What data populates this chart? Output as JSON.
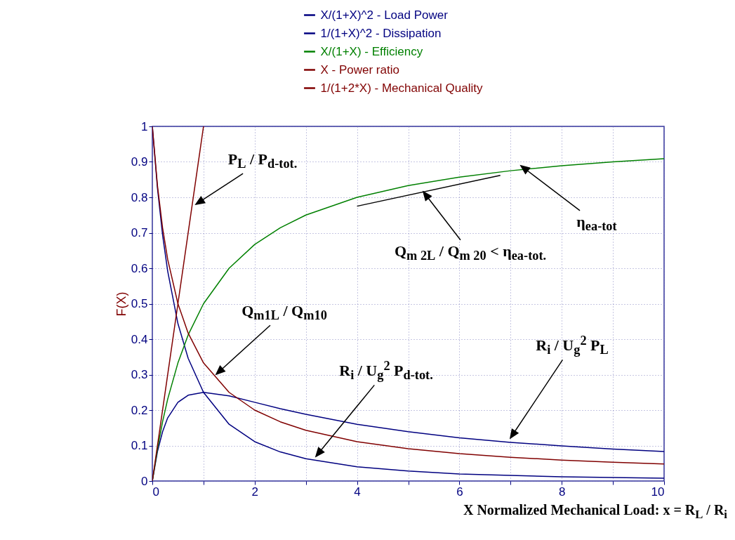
{
  "chart_data": {
    "type": "line",
    "ylabel": "F(X)",
    "xlabel": "X Normalized Mechanical Load:  x = R$_{L}$ / R$_{i}$",
    "x": [
      0,
      0.1,
      0.2,
      0.3,
      0.5,
      0.7,
      1,
      1.5,
      2,
      2.5,
      3,
      4,
      5,
      6,
      7,
      8,
      9,
      10
    ],
    "series": [
      {
        "name": "X/(1+X)^2 - Load Power",
        "color": "#000080",
        "values": [
          0,
          0.083,
          0.139,
          0.178,
          0.222,
          0.242,
          0.25,
          0.24,
          0.222,
          0.204,
          0.188,
          0.16,
          0.139,
          0.122,
          0.109,
          0.099,
          0.09,
          0.083
        ]
      },
      {
        "name": "1/(1+X)^2 - Dissipation",
        "color": "#000080",
        "values": [
          1,
          0.826,
          0.694,
          0.592,
          0.444,
          0.346,
          0.25,
          0.16,
          0.111,
          0.082,
          0.063,
          0.04,
          0.028,
          0.02,
          0.016,
          0.012,
          0.01,
          0.008
        ]
      },
      {
        "name": "X/(1+X) - Efficiency",
        "color": "#008000",
        "values": [
          0,
          0.091,
          0.167,
          0.231,
          0.333,
          0.412,
          0.5,
          0.6,
          0.667,
          0.714,
          0.75,
          0.8,
          0.833,
          0.857,
          0.875,
          0.889,
          0.9,
          0.909
        ]
      },
      {
        "name": "X - Power ratio",
        "color": "#800000",
        "x": [
          0,
          0.5,
          1
        ],
        "values": [
          0,
          0.5,
          1
        ]
      },
      {
        "name": "1/(1+2*X) - Mechanical Quality",
        "color": "#800000",
        "values": [
          1,
          0.833,
          0.714,
          0.625,
          0.5,
          0.417,
          0.333,
          0.25,
          0.2,
          0.167,
          0.143,
          0.111,
          0.091,
          0.077,
          0.067,
          0.059,
          0.053,
          0.048
        ]
      },
      {
        "color": "#000000",
        "x": [
          4,
          6.8
        ],
        "values": [
          0.775,
          0.862
        ]
      }
    ],
    "xlim": [
      0,
      10
    ],
    "xticks": [
      0,
      {
        "value": 1,
        "label": null
      },
      2,
      {
        "value": 3,
        "label": null
      },
      4,
      {
        "value": 5,
        "label": null
      },
      6,
      {
        "value": 7,
        "label": null
      },
      8,
      {
        "value": 9,
        "label": null
      },
      10
    ],
    "ylim": [
      0,
      1
    ],
    "yticks": [
      0,
      0.1,
      0.2,
      0.3,
      0.4,
      0.5,
      0.6,
      0.7,
      0.8,
      0.9,
      1
    ],
    "grid": true,
    "legend": "top",
    "line_style": "solid",
    "annotations": [
      "P$_{L}$ / P$_{d-tot.}$",
      "Q$_{m1L}$ / Q$_{m10}$",
      "R$_{i}$ / U$_{g}$$^{2}$ P$_{d-tot.}$",
      "R$_{i}$ / U$_{g}$$^{2}$ P$_{L}$",
      "η$_{ea-tot}$",
      "Q$_{m 2L}$ / Q$_{m 20}$ < η$_{ea-tot.}$"
    ]
  }
}
